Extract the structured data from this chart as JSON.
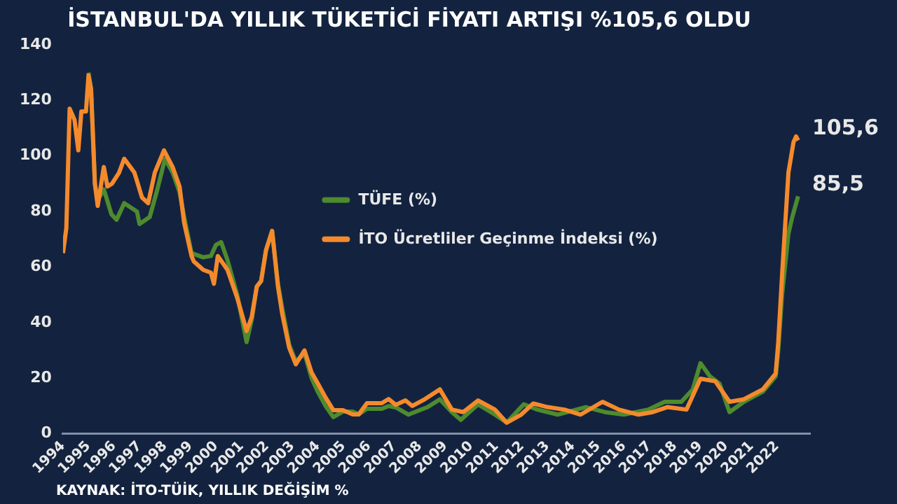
{
  "chart_data": {
    "type": "line",
    "title": "İSTANBUL'DA YILLIK TÜKETİCİ FİYATI ARTIŞI %105,6 OLDU",
    "xlim": [
      1994,
      2023.3
    ],
    "xticks": [
      1994,
      1995,
      1996,
      1997,
      1998,
      1999,
      2000,
      2001,
      2002,
      2003,
      2004,
      2005,
      2006,
      2007,
      2008,
      2009,
      2010,
      2011,
      2012,
      2013,
      2014,
      2015,
      2016,
      2017,
      2018,
      2019,
      2020,
      2021,
      2022
    ],
    "ylim": [
      0,
      140
    ],
    "yticks": [
      0,
      20,
      40,
      60,
      80,
      100,
      120,
      140
    ],
    "grid": false,
    "legend": "center",
    "marker": "none",
    "line_style": "solid",
    "series": [
      {
        "name": "TÜFE (%)",
        "color": "#4e8a2e",
        "x": [
          1995.0,
          1995.1,
          1995.25,
          1995.36,
          1995.6,
          1995.9,
          1996.1,
          1996.4,
          1996.9,
          1997.0,
          1997.4,
          1997.7,
          1998.0,
          1998.3,
          1998.57,
          1998.75,
          1999.04,
          1999.5,
          1999.8,
          2000.0,
          2000.2,
          2000.45,
          2000.83,
          2001.2,
          2001.4,
          2001.6,
          2001.77,
          2001.96,
          2002.2,
          2002.43,
          2002.6,
          2002.87,
          2003.13,
          2003.47,
          2003.75,
          2004.0,
          2004.3,
          2004.6,
          2004.98,
          2005.36,
          2005.6,
          2005.92,
          2006.5,
          2006.77,
          2007.05,
          2007.55,
          2008.3,
          2008.78,
          2009.25,
          2009.6,
          2010.28,
          2010.94,
          2011.4,
          2012.07,
          2012.6,
          2013.4,
          2014.5,
          2015.25,
          2016.0,
          2016.95,
          2017.6,
          2018.25,
          2018.7,
          2019.0,
          2019.37,
          2019.75,
          2020.14,
          2020.7,
          2021.45,
          2021.95,
          2022.05,
          2022.2,
          2022.45,
          2022.6,
          2022.83
        ],
        "values": [
          130,
          124,
          90,
          84,
          88,
          79,
          77,
          83,
          80,
          75.5,
          78,
          88,
          99,
          94,
          87,
          78,
          65,
          63.5,
          64,
          68,
          69,
          62.5,
          50,
          33,
          41,
          53,
          55,
          66,
          73,
          54,
          45,
          32,
          26,
          29,
          20,
          15,
          10,
          6,
          8,
          8,
          7,
          9,
          9,
          10,
          9.5,
          6.9,
          9.6,
          12.4,
          7.8,
          5,
          10.6,
          6.9,
          4,
          10.6,
          8.7,
          6.9,
          9.6,
          7.8,
          6.9,
          8.7,
          11.5,
          11.5,
          16,
          25.4,
          20.7,
          18,
          7.8,
          11.5,
          15.2,
          20.7,
          30,
          50,
          72,
          78,
          85.5
        ]
      },
      {
        "name": "İTO Ücretliler Geçinme İndeksi (%)",
        "color": "#f58a2c",
        "x": [
          1994.0,
          1994.13,
          1994.26,
          1994.45,
          1994.6,
          1994.72,
          1994.9,
          1995.0,
          1995.1,
          1995.25,
          1995.36,
          1995.6,
          1995.74,
          1995.92,
          1996.2,
          1996.4,
          1996.8,
          1997.1,
          1997.34,
          1997.6,
          1997.96,
          1998.3,
          1998.57,
          1998.75,
          1999.04,
          1999.13,
          1999.5,
          1999.8,
          1999.92,
          2000.07,
          2000.45,
          2000.83,
          2001.2,
          2001.4,
          2001.6,
          2001.77,
          2001.96,
          2002.2,
          2002.43,
          2002.6,
          2002.87,
          2003.13,
          2003.47,
          2003.75,
          2004.0,
          2004.3,
          2004.6,
          2004.98,
          2005.36,
          2005.6,
          2005.92,
          2006.5,
          2006.77,
          2007.05,
          2007.43,
          2007.7,
          2008.2,
          2008.78,
          2009.25,
          2009.7,
          2010.28,
          2010.94,
          2011.4,
          2011.97,
          2012.44,
          2013.0,
          2013.66,
          2014.3,
          2015.16,
          2015.8,
          2016.57,
          2017.13,
          2017.7,
          2018.45,
          2019.0,
          2019.58,
          2020.14,
          2020.7,
          2021.45,
          2021.95,
          2022.05,
          2022.2,
          2022.45,
          2022.65,
          2022.75,
          2022.83
        ],
        "values": [
          65,
          74,
          117,
          113,
          102,
          116,
          116,
          129,
          124,
          90,
          82,
          96,
          89,
          90,
          94,
          99,
          94,
          85,
          83,
          94,
          102,
          96,
          89,
          76,
          64,
          62,
          59,
          58,
          54,
          64,
          59,
          49,
          37,
          42,
          53,
          55,
          66,
          73,
          53,
          43,
          31,
          25,
          30,
          22,
          18,
          13,
          8.5,
          8.5,
          7,
          7,
          11,
          11,
          12.5,
          10.4,
          12,
          10,
          12.5,
          16,
          8.7,
          7.8,
          12,
          8.7,
          4,
          6.9,
          10.9,
          9.6,
          8.7,
          6.9,
          11.5,
          8.7,
          6.9,
          7.8,
          9.6,
          8.7,
          19.8,
          18.9,
          11.5,
          12.4,
          16,
          21.7,
          32.8,
          57,
          94,
          105,
          107,
          105.6
        ]
      }
    ],
    "annotations": [
      {
        "text": "105,6",
        "x": 2022.83,
        "y": 105.6
      },
      {
        "text": "85,5",
        "x": 2022.83,
        "y": 85.5
      },
      "KAYNAK: İTO-TÜİK, YILLIK DEĞİŞİM %"
    ]
  }
}
